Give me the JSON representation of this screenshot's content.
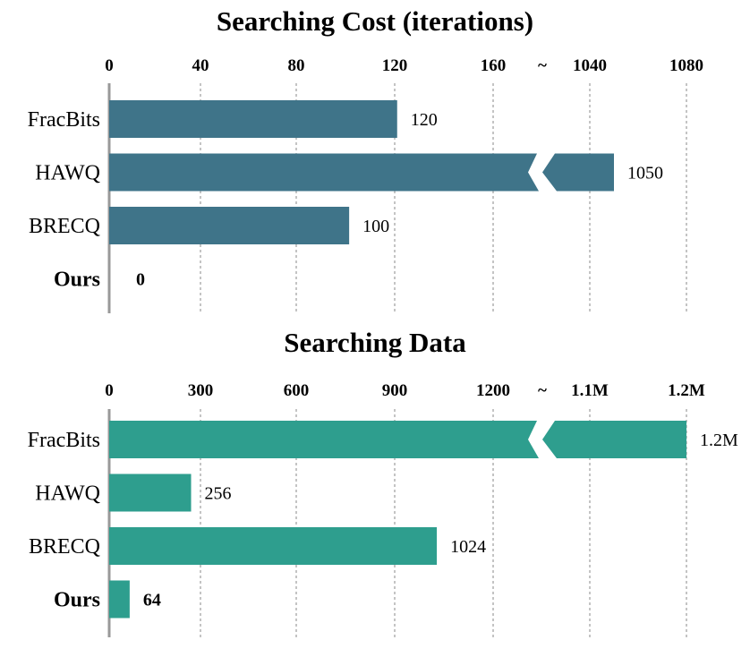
{
  "chart_data": [
    {
      "type": "bar",
      "orientation": "horizontal",
      "title": "Searching Cost (iterations)",
      "categories": [
        "FracBits",
        "HAWQ",
        "BRECQ",
        "Ours"
      ],
      "bold_categories": [
        "Ours"
      ],
      "values": [
        120,
        1050,
        100,
        0
      ],
      "value_labels": [
        "120",
        "1050",
        "100",
        "0"
      ],
      "broken_axis": true,
      "break_symbol": "~",
      "break_bars": [
        "HAWQ"
      ],
      "axis_segments": [
        [
          0,
          180
        ],
        [
          1040,
          1080
        ]
      ],
      "x_ticks": [
        "0",
        "40",
        "80",
        "120",
        "160",
        "1040",
        "1080"
      ],
      "grid": "vertical-dotted",
      "legend": "none",
      "color": "#3f7489"
    },
    {
      "type": "bar",
      "orientation": "horizontal",
      "title": "Searching Data",
      "categories": [
        "FracBits",
        "HAWQ",
        "BRECQ",
        "Ours"
      ],
      "bold_categories": [
        "Ours"
      ],
      "values": [
        1200000,
        256,
        1024,
        64
      ],
      "value_labels": [
        "1.2M",
        "256",
        "1024",
        "64"
      ],
      "broken_axis": true,
      "break_symbol": "~",
      "break_bars": [
        "FracBits"
      ],
      "axis_segments": [
        [
          0,
          1350
        ],
        [
          1100000,
          1200000
        ]
      ],
      "x_ticks": [
        "0",
        "300",
        "600",
        "900",
        "1200",
        "1.1M",
        "1.2M"
      ],
      "grid": "vertical-dotted",
      "legend": "none",
      "color": "#2e9e8e"
    }
  ]
}
